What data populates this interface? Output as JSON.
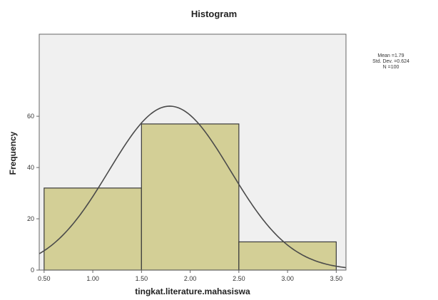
{
  "chart_data": {
    "type": "bar",
    "title": "Histogram",
    "xlabel": "tingkat.literature.mahasiswa",
    "ylabel": "Frequency",
    "xlim": [
      0.45,
      3.6
    ],
    "ylim": [
      0,
      92
    ],
    "x_ticks": [
      "0.50",
      "1.00",
      "1.50",
      "2.00",
      "2.50",
      "3.00",
      "3.50"
    ],
    "x_tick_values": [
      0.5,
      1.0,
      1.5,
      2.0,
      2.5,
      3.0,
      3.5
    ],
    "y_ticks": [
      "0",
      "20",
      "40",
      "60"
    ],
    "y_tick_values": [
      0,
      20,
      40,
      60
    ],
    "bins": [
      {
        "start": 0.5,
        "end": 1.5,
        "value": 32
      },
      {
        "start": 1.5,
        "end": 2.5,
        "value": 57
      },
      {
        "start": 2.5,
        "end": 3.5,
        "value": 11
      }
    ],
    "normal_curve": {
      "mean": 1.79,
      "std": 0.624,
      "n": 100,
      "bin_width": 1.0
    },
    "stats_text": [
      "Mean =1.79",
      "Std. Dev. =0.624",
      "N =100"
    ],
    "colors": {
      "plot_background": "#f0f0f0",
      "bar_fill": "#d3cf96",
      "bar_stroke": "#3a3a3a",
      "curve": "#4a4a4a",
      "frame": "#666666"
    }
  }
}
